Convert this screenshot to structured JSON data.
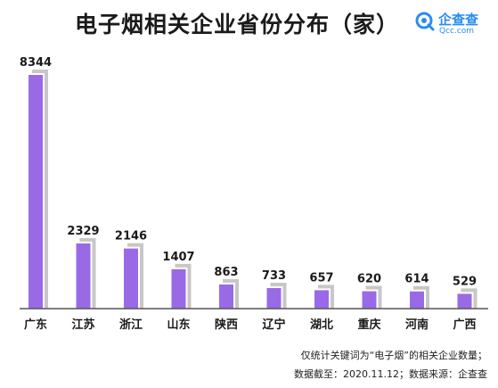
{
  "title": "电子烟相关企业省份分布（家）",
  "logo": {
    "name": "企查查",
    "sub": "Qcc.com",
    "color": "#2a8cf0"
  },
  "notes": [
    "仅统计关键词为“电子烟”的相关企业数量；",
    "数据截至：2020.11.12；数据来源：企查查"
  ],
  "colors": {
    "bar": "#9a6ae6",
    "shadow": "#c7c7c7",
    "baseline": "#555555"
  },
  "chart_data": {
    "type": "bar",
    "categories": [
      "广东",
      "江苏",
      "浙江",
      "山东",
      "陕西",
      "辽宁",
      "湖北",
      "重庆",
      "河南",
      "广西"
    ],
    "values": [
      8344,
      2329,
      2146,
      1407,
      863,
      733,
      657,
      620,
      614,
      529
    ],
    "title": "电子烟相关企业省份分布（家）",
    "xlabel": "",
    "ylabel": "",
    "ylim": [
      0,
      8344
    ],
    "grid": false,
    "legend": "none"
  }
}
